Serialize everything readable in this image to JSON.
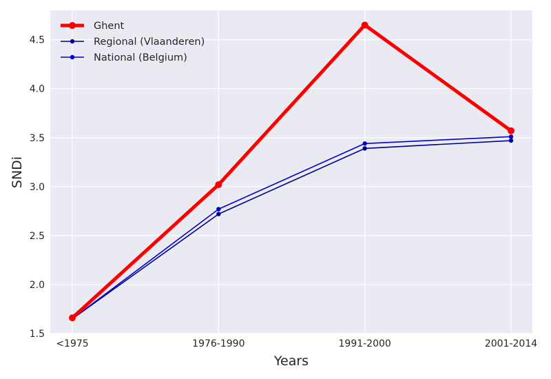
{
  "chart_data": {
    "type": "line",
    "categories": [
      "<1975",
      "1976-1990",
      "1991-2000",
      "2001-2014"
    ],
    "series": [
      {
        "name": "Ghent",
        "values": [
          1.66,
          3.02,
          4.65,
          3.57
        ],
        "color": "#ff0000",
        "emphasis": "thick"
      },
      {
        "name": "Regional (Vlaanderen)",
        "values": [
          1.65,
          2.72,
          3.39,
          3.47
        ],
        "color": "#00008b"
      },
      {
        "name": "National (Belgium)",
        "values": [
          1.65,
          2.77,
          3.44,
          3.51
        ],
        "color": "#0000cd"
      }
    ],
    "xlabel": "Years",
    "ylabel": "SNDi",
    "ylim": [
      1.5,
      4.8
    ],
    "yticks": [
      "1.5",
      "2.0",
      "2.5",
      "3.0",
      "3.5",
      "4.0",
      "4.5"
    ],
    "grid": true,
    "legend_position": "top-left",
    "background": "#eaeaf2"
  }
}
